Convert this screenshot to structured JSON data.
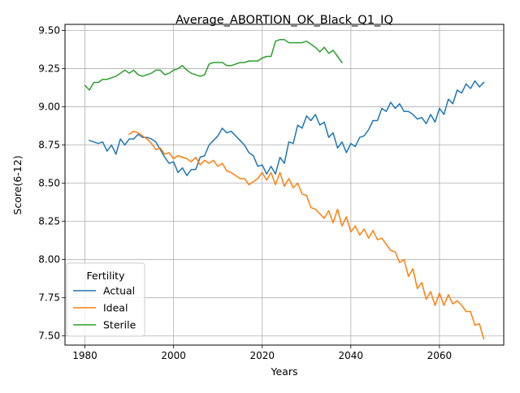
{
  "chart_data": {
    "type": "line",
    "title": "Average_ABORTION_OK_Black_Q1_IQ",
    "xlabel": "Years",
    "ylabel": "Score(6-12)",
    "xlim": [
      1975.5,
      2074.5
    ],
    "ylim": [
      7.44,
      9.54
    ],
    "xticks": [
      1980,
      2000,
      2020,
      2040,
      2060
    ],
    "yticks": [
      7.5,
      7.75,
      8.0,
      8.25,
      8.5,
      8.75,
      9.0,
      9.25,
      9.5
    ],
    "ytick_labels": [
      "7.50",
      "7.75",
      "8.00",
      "8.25",
      "8.50",
      "8.75",
      "9.00",
      "9.25",
      "9.50"
    ],
    "grid": true,
    "legend": {
      "title": "Fertility",
      "placement": "lower-left"
    },
    "series": [
      {
        "name": "Actual",
        "color": "#1f77b4",
        "x": [
          1981,
          1982,
          1983,
          1984,
          1985,
          1986,
          1987,
          1988,
          1989,
          1990,
          1991,
          1992,
          1993,
          1994,
          1995,
          1996,
          1997,
          1998,
          1999,
          2000,
          2001,
          2002,
          2003,
          2004,
          2005,
          2006,
          2007,
          2008,
          2009,
          2010,
          2011,
          2012,
          2013,
          2014,
          2015,
          2016,
          2017,
          2018,
          2019,
          2020,
          2021,
          2022,
          2023,
          2024,
          2025,
          2026,
          2027,
          2028,
          2029,
          2030,
          2031,
          2032,
          2033,
          2034,
          2035,
          2036,
          2037,
          2038,
          2039,
          2040,
          2041,
          2042,
          2043,
          2044,
          2045,
          2046,
          2047,
          2048,
          2049,
          2050,
          2051,
          2052,
          2053,
          2054,
          2055,
          2056,
          2057,
          2058,
          2059,
          2060,
          2061,
          2062,
          2063,
          2064,
          2065,
          2066,
          2067,
          2068,
          2069,
          2070
        ],
        "values": [
          8.78,
          8.77,
          8.76,
          8.77,
          8.71,
          8.75,
          8.69,
          8.79,
          8.75,
          8.79,
          8.79,
          8.82,
          8.8,
          8.8,
          8.79,
          8.77,
          8.72,
          8.67,
          8.63,
          8.64,
          8.57,
          8.6,
          8.55,
          8.59,
          8.59,
          8.67,
          8.68,
          8.75,
          8.78,
          8.81,
          8.86,
          8.83,
          8.84,
          8.81,
          8.78,
          8.75,
          8.7,
          8.68,
          8.61,
          8.62,
          8.56,
          8.61,
          8.56,
          8.67,
          8.63,
          8.77,
          8.76,
          8.88,
          8.86,
          8.94,
          8.91,
          8.95,
          8.88,
          8.9,
          8.8,
          8.83,
          8.73,
          8.77,
          8.7,
          8.76,
          8.74,
          8.8,
          8.81,
          8.85,
          8.91,
          8.91,
          8.99,
          8.97,
          9.03,
          8.99,
          9.02,
          8.97,
          8.97,
          8.95,
          8.92,
          8.93,
          8.89,
          8.95,
          8.9,
          8.99,
          8.95,
          9.05,
          9.02,
          9.11,
          9.09,
          9.15,
          9.12,
          9.17,
          9.13,
          9.16
        ]
      },
      {
        "name": "Ideal",
        "color": "#ff7f0e",
        "x": [
          1990,
          1991,
          1992,
          1993,
          1994,
          1995,
          1996,
          1997,
          1998,
          1999,
          2000,
          2001,
          2002,
          2003,
          2004,
          2005,
          2006,
          2007,
          2008,
          2009,
          2010,
          2011,
          2012,
          2013,
          2014,
          2015,
          2016,
          2017,
          2018,
          2019,
          2020,
          2021,
          2022,
          2023,
          2024,
          2025,
          2026,
          2027,
          2028,
          2029,
          2030,
          2031,
          2032,
          2033,
          2034,
          2035,
          2036,
          2037,
          2038,
          2039,
          2040,
          2041,
          2042,
          2043,
          2044,
          2045,
          2046,
          2047,
          2048,
          2049,
          2050,
          2051,
          2052,
          2053,
          2054,
          2055,
          2056,
          2057,
          2058,
          2059,
          2060,
          2061,
          2062,
          2063,
          2064,
          2065,
          2066,
          2067,
          2068,
          2069,
          2070
        ],
        "values": [
          8.82,
          8.84,
          8.83,
          8.81,
          8.79,
          8.76,
          8.72,
          8.73,
          8.69,
          8.7,
          8.66,
          8.68,
          8.67,
          8.66,
          8.64,
          8.67,
          8.62,
          8.65,
          8.63,
          8.65,
          8.61,
          8.63,
          8.58,
          8.57,
          8.55,
          8.53,
          8.53,
          8.49,
          8.51,
          8.53,
          8.57,
          8.52,
          8.57,
          8.49,
          8.57,
          8.48,
          8.53,
          8.47,
          8.5,
          8.43,
          8.42,
          8.34,
          8.33,
          8.3,
          8.27,
          8.32,
          8.24,
          8.33,
          8.22,
          8.28,
          8.18,
          8.22,
          8.16,
          8.2,
          8.14,
          8.19,
          8.13,
          8.14,
          8.1,
          8.06,
          8.05,
          7.98,
          8.0,
          7.89,
          7.94,
          7.81,
          7.85,
          7.74,
          7.79,
          7.7,
          7.78,
          7.7,
          7.77,
          7.71,
          7.73,
          7.7,
          7.66,
          7.66,
          7.57,
          7.58,
          7.48
        ]
      },
      {
        "name": "Sterile",
        "color": "#2ca02c",
        "x": [
          1980,
          1981,
          1982,
          1983,
          1984,
          1985,
          1986,
          1987,
          1988,
          1989,
          1990,
          1991,
          1992,
          1993,
          1994,
          1995,
          1996,
          1997,
          1998,
          1999,
          2000,
          2001,
          2002,
          2003,
          2004,
          2005,
          2006,
          2007,
          2008,
          2009,
          2010,
          2011,
          2012,
          2013,
          2014,
          2015,
          2016,
          2017,
          2018,
          2019,
          2020,
          2021,
          2022,
          2023,
          2024,
          2025,
          2026,
          2027,
          2028,
          2029,
          2030,
          2031,
          2032,
          2033,
          2034,
          2035,
          2036,
          2037,
          2038
        ],
        "values": [
          9.14,
          9.11,
          9.16,
          9.16,
          9.18,
          9.18,
          9.19,
          9.2,
          9.22,
          9.24,
          9.22,
          9.24,
          9.21,
          9.2,
          9.21,
          9.22,
          9.24,
          9.24,
          9.21,
          9.22,
          9.24,
          9.25,
          9.27,
          9.24,
          9.22,
          9.21,
          9.2,
          9.21,
          9.28,
          9.29,
          9.29,
          9.29,
          9.27,
          9.27,
          9.28,
          9.29,
          9.29,
          9.3,
          9.3,
          9.3,
          9.32,
          9.33,
          9.33,
          9.43,
          9.44,
          9.44,
          9.42,
          9.42,
          9.42,
          9.42,
          9.43,
          9.41,
          9.39,
          9.36,
          9.39,
          9.35,
          9.37,
          9.33,
          9.29
        ]
      }
    ]
  }
}
